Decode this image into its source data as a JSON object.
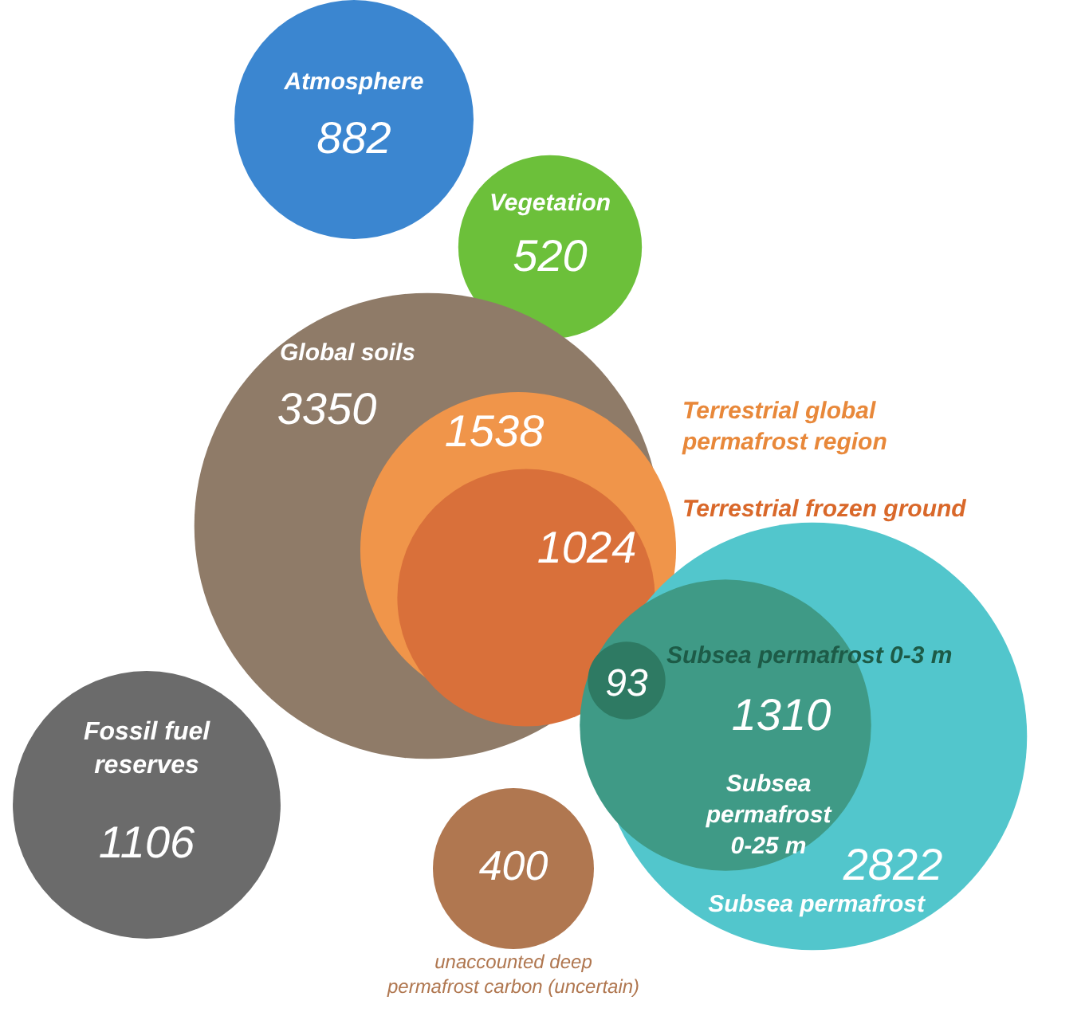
{
  "chart_data": {
    "type": "other",
    "data_labels": true,
    "categories": [
      "Atmosphere",
      "Vegetation",
      "Global soils",
      "Terrestrial global permafrost region",
      "Terrestrial frozen ground",
      "Subsea permafrost",
      "Subsea permafrost 0-25 m",
      "Subsea permafrost 0-3 m",
      "Fossil fuel reserves",
      "unaccounted deep permafrost carbon (uncertain)"
    ],
    "values": [
      882,
      520,
      3350,
      1538,
      1024,
      2822,
      1310,
      93,
      1106,
      400
    ],
    "colors": [
      "#3b86d0",
      "#6cc03a",
      "#8f7b68",
      "#f0954a",
      "#d9703a",
      "#52c6cc",
      "#3f9a86",
      "#2e7a63",
      "#6b6b6b",
      "#b07750"
    ]
  }
}
